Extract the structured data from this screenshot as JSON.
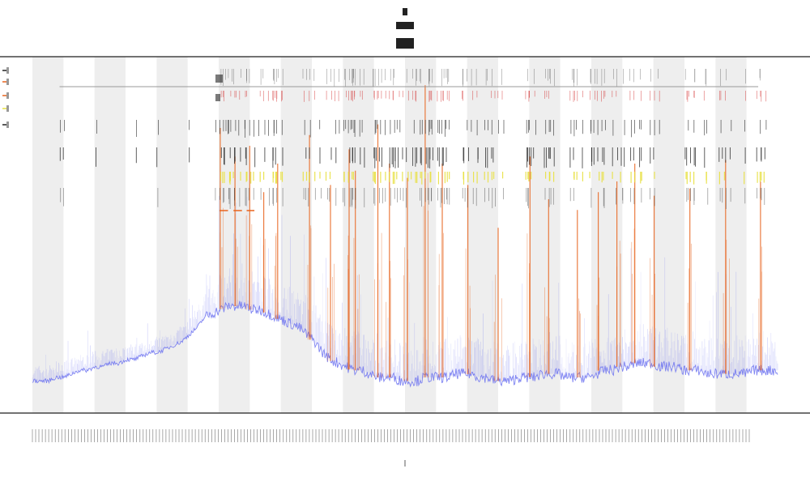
{
  "chart_data": {
    "type": "line",
    "title": "",
    "subtitle": "",
    "xlabel": "",
    "ylabel": "",
    "grid": false,
    "legend_position": "top-left",
    "colors": {
      "series": "#6a70f0",
      "spike": "#e8641e",
      "spike_alt": "#d22828",
      "marker_dark": "#222222",
      "marker_yellow": "#e8e040",
      "band": "#eeeeee",
      "axis": "#444444",
      "ref_line": "#999999"
    },
    "bands": [
      [
        0,
        4
      ],
      [
        8,
        12
      ],
      [
        16,
        20
      ],
      [
        24,
        28
      ],
      [
        32,
        36
      ],
      [
        40,
        44
      ],
      [
        48,
        52
      ],
      [
        56,
        60
      ],
      [
        64,
        68
      ],
      [
        72,
        76
      ],
      [
        80,
        84
      ],
      [
        88,
        92
      ]
    ],
    "x_range": [
      0,
      96
    ],
    "series": [
      {
        "values": [
          0.09,
          0.09,
          0.09,
          0.1,
          0.1,
          0.11,
          0.12,
          0.12,
          0.13,
          0.13,
          0.14,
          0.14,
          0.15,
          0.15,
          0.16,
          0.17,
          0.17,
          0.18,
          0.19,
          0.2,
          0.22,
          0.24,
          0.27,
          0.28,
          0.29,
          0.3,
          0.3,
          0.3,
          0.29,
          0.29,
          0.28,
          0.27,
          0.26,
          0.25,
          0.24,
          0.22,
          0.2,
          0.17,
          0.15,
          0.14,
          0.13,
          0.12,
          0.12,
          0.11,
          0.1,
          0.1,
          0.1,
          0.09,
          0.09,
          0.09,
          0.1,
          0.1,
          0.1,
          0.1,
          0.11,
          0.11,
          0.11,
          0.1,
          0.1,
          0.09,
          0.09,
          0.09,
          0.1,
          0.1,
          0.1,
          0.11,
          0.11,
          0.11,
          0.1,
          0.1,
          0.1,
          0.1,
          0.11,
          0.12,
          0.12,
          0.13,
          0.13,
          0.14,
          0.14,
          0.14,
          0.13,
          0.13,
          0.13,
          0.12,
          0.12,
          0.12,
          0.11,
          0.11,
          0.11,
          0.11,
          0.11,
          0.11,
          0.12,
          0.12,
          0.12,
          0.12
        ]
      }
    ],
    "spikes": [
      {
        "x": 24.2,
        "h": 0.8
      },
      {
        "x": 26.1,
        "h": 0.72
      },
      {
        "x": 28.0,
        "h": 0.75
      },
      {
        "x": 29.8,
        "h": 0.62
      },
      {
        "x": 31.6,
        "h": 0.7
      },
      {
        "x": 35.7,
        "h": 0.78
      },
      {
        "x": 38.4,
        "h": 0.64
      },
      {
        "x": 40.8,
        "h": 0.74
      },
      {
        "x": 41.6,
        "h": 0.68
      },
      {
        "x": 44.5,
        "h": 0.81
      },
      {
        "x": 46.0,
        "h": 0.7
      },
      {
        "x": 48.3,
        "h": 0.66
      },
      {
        "x": 50.6,
        "h": 0.92
      },
      {
        "x": 52.8,
        "h": 0.7
      },
      {
        "x": 56.1,
        "h": 0.64
      },
      {
        "x": 60.0,
        "h": 0.52
      },
      {
        "x": 64.1,
        "h": 0.72
      },
      {
        "x": 66.5,
        "h": 0.6
      },
      {
        "x": 70.2,
        "h": 0.57
      },
      {
        "x": 72.9,
        "h": 0.62
      },
      {
        "x": 75.3,
        "h": 0.65
      },
      {
        "x": 77.6,
        "h": 0.7
      },
      {
        "x": 80.1,
        "h": 0.61
      },
      {
        "x": 84.7,
        "h": 0.63
      },
      {
        "x": 89.3,
        "h": 0.71
      },
      {
        "x": 93.8,
        "h": 0.65
      }
    ],
    "reference_line": {
      "x_start": 3.5,
      "x_end": 93.5
    },
    "legend_entries": [
      "",
      "",
      "",
      "",
      ""
    ]
  }
}
